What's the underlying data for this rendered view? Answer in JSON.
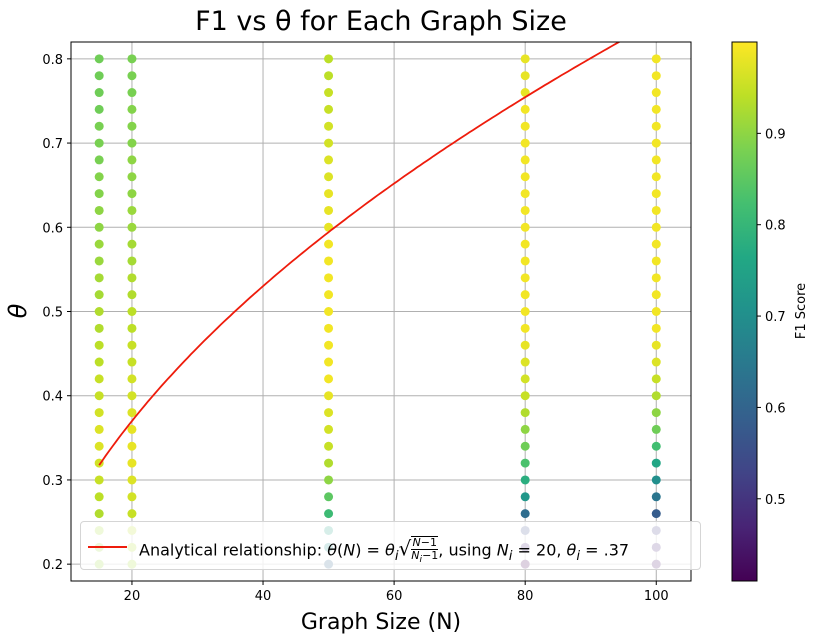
{
  "chart_data": {
    "type": "scatter",
    "title": "F1 vs θ for Each Graph Size",
    "xlabel": "Graph Size (N)",
    "ylabel": "θ",
    "xlim": [
      10.7,
      105.3
    ],
    "ylim": [
      0.18,
      0.82
    ],
    "xticks": [
      20,
      40,
      60,
      80,
      100
    ],
    "yticks": [
      0.2,
      0.3,
      0.4,
      0.5,
      0.6,
      0.7,
      0.8
    ],
    "grid": true,
    "theta_values": [
      0.2,
      0.22,
      0.24,
      0.26,
      0.28,
      0.3,
      0.32,
      0.34,
      0.36,
      0.38,
      0.4,
      0.42,
      0.44,
      0.46,
      0.48,
      0.5,
      0.52,
      0.54,
      0.56,
      0.58,
      0.6,
      0.62,
      0.64,
      0.66,
      0.68,
      0.7,
      0.72,
      0.74,
      0.76,
      0.78,
      0.8
    ],
    "series": [
      {
        "N": 15,
        "f1": [
          0.91,
          0.91,
          0.92,
          0.93,
          0.94,
          0.95,
          0.96,
          0.97,
          0.97,
          0.96,
          0.95,
          0.95,
          0.94,
          0.94,
          0.93,
          0.93,
          0.92,
          0.92,
          0.91,
          0.91,
          0.9,
          0.9,
          0.89,
          0.89,
          0.88,
          0.88,
          0.88,
          0.87,
          0.87,
          0.87,
          0.87
        ]
      },
      {
        "N": 20,
        "f1": [
          0.92,
          0.93,
          0.94,
          0.95,
          0.96,
          0.97,
          0.98,
          0.98,
          0.98,
          0.97,
          0.96,
          0.96,
          0.95,
          0.95,
          0.94,
          0.94,
          0.93,
          0.93,
          0.92,
          0.92,
          0.91,
          0.91,
          0.9,
          0.9,
          0.9,
          0.89,
          0.89,
          0.89,
          0.88,
          0.88,
          0.88
        ]
      },
      {
        "N": 50,
        "f1": [
          0.6,
          0.7,
          0.75,
          0.81,
          0.85,
          0.9,
          0.93,
          0.95,
          0.96,
          0.97,
          0.98,
          0.99,
          0.99,
          0.99,
          0.99,
          0.99,
          0.99,
          0.99,
          0.99,
          0.99,
          0.98,
          0.98,
          0.98,
          0.97,
          0.97,
          0.96,
          0.96,
          0.95,
          0.95,
          0.94,
          0.94
        ]
      },
      {
        "N": 80,
        "f1": [
          0.4,
          0.48,
          0.55,
          0.62,
          0.72,
          0.78,
          0.83,
          0.87,
          0.9,
          0.93,
          0.95,
          0.96,
          0.97,
          0.98,
          0.99,
          0.99,
          0.99,
          0.99,
          0.99,
          0.99,
          0.99,
          0.99,
          0.99,
          0.99,
          0.99,
          0.99,
          0.99,
          0.99,
          0.98,
          0.98,
          0.98
        ]
      },
      {
        "N": 100,
        "f1": [
          0.45,
          0.48,
          0.52,
          0.58,
          0.64,
          0.7,
          0.76,
          0.82,
          0.87,
          0.9,
          0.93,
          0.95,
          0.97,
          0.98,
          0.99,
          0.99,
          0.99,
          0.99,
          0.99,
          0.99,
          0.99,
          0.99,
          0.99,
          0.99,
          0.99,
          0.99,
          0.99,
          0.99,
          0.99,
          0.99,
          0.99
        ]
      }
    ],
    "curve": {
      "N_i": 20,
      "theta_i": 0.37,
      "N_from": 15,
      "N_to": 101,
      "color": "#ee1c0c"
    },
    "colorbar": {
      "label": "F1 Score",
      "min": 0.41,
      "max": 1.0,
      "ticks": [
        0.5,
        0.6,
        0.7,
        0.8,
        0.9
      ],
      "colormap": "viridis"
    }
  },
  "legend": {
    "placement": "lower-center",
    "text_prefix": "Analytical relationship: ",
    "text_suffix": ", using "
  }
}
